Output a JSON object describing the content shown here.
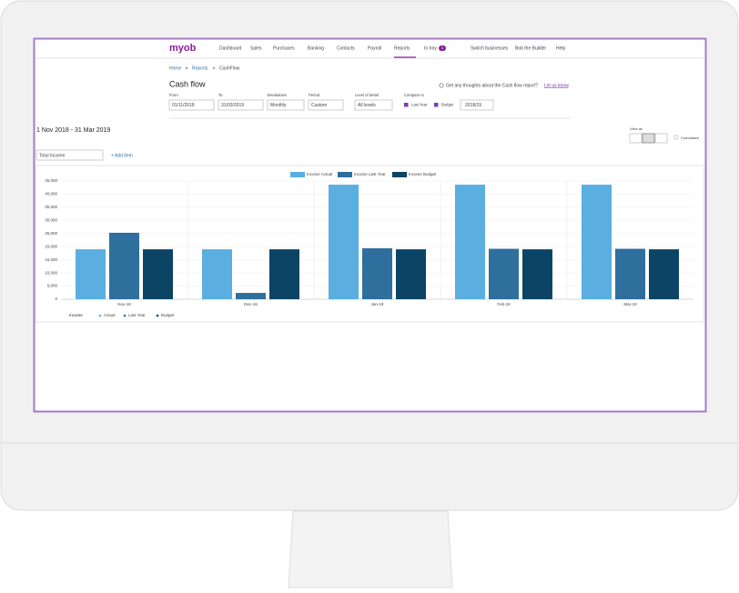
{
  "nav": {
    "logo": "myob",
    "items": [
      "Dashboard",
      "Sales",
      "Purchases",
      "Banking",
      "Contacts",
      "Payroll",
      "Reports",
      "In tray"
    ],
    "badge": "3",
    "right": [
      "Switch businesses",
      "Bob the Builder",
      "Help"
    ]
  },
  "breadcrumb": [
    "Home",
    "Reports",
    "CashFlow"
  ],
  "title": "Cash flow",
  "feedback": {
    "text": "Get any thoughts about the Cash flow report?",
    "link": "Let us know"
  },
  "filters": [
    {
      "label": "From",
      "value": "01/11/2018"
    },
    {
      "label": "To",
      "value": "31/03/2019"
    },
    {
      "label": "Breakdown",
      "value": "Monthly"
    },
    {
      "label": "Period",
      "value": "Custom"
    },
    {
      "label": "Level of detail",
      "value": "All levels"
    }
  ],
  "compare": {
    "label": "Compare to",
    "options": [
      "Last Year",
      "Budget"
    ],
    "year": "2018/19"
  },
  "date_range": "1 Nov 2018 - 31 Mar 2019",
  "view_as": "View as",
  "cumulative": "Cumulative",
  "item_select": "Total Income",
  "add_item": "+ Add item",
  "chart_data": {
    "type": "bar",
    "categories": [
      "Nov-18",
      "Dec-18",
      "Jan-19",
      "Feb-19",
      "Mar-19"
    ],
    "series": [
      {
        "name": "Income Actual",
        "color": "#5aaee0",
        "values": [
          19000,
          19000,
          43600,
          43600,
          43600
        ]
      },
      {
        "name": "Income Last Year",
        "color": "#2f6f9e",
        "values": [
          25300,
          2400,
          19400,
          19200,
          19200
        ]
      },
      {
        "name": "Income Budget",
        "color": "#0c4466",
        "values": [
          19000,
          19000,
          19000,
          19000,
          19000
        ]
      }
    ],
    "ylim": [
      0,
      45000
    ],
    "yticks": [
      0,
      {
        "value": 5000,
        "label": "5,000"
      },
      {
        "value": 10000,
        "label": "10,000"
      },
      {
        "value": 15000,
        "label": "15,000"
      },
      {
        "value": 20000,
        "label": "20,000"
      },
      {
        "value": 25000,
        "label": "25,000"
      },
      {
        "value": 30000,
        "label": "30,000"
      },
      {
        "value": 35000,
        "label": "35,000"
      },
      {
        "value": 40000,
        "label": "40,000"
      },
      {
        "value": 45000,
        "label": "45,000"
      }
    ],
    "grid": true
  },
  "footer_legend": {
    "label": "Income",
    "items": [
      "Actual",
      "Last Year",
      "Budget"
    ]
  }
}
